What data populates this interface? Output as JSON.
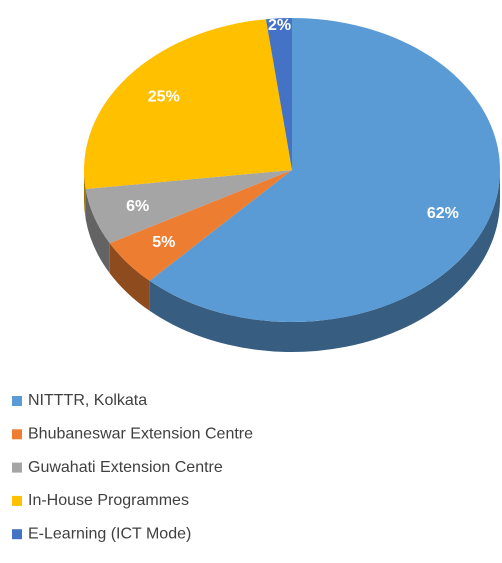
{
  "chart_data": {
    "type": "pie",
    "categories": [
      "NITTTR, Kolkata",
      "Bhubaneswar Extension Centre",
      "Guwahati Extension Centre",
      "In-House Programmes",
      "E-Learning (ICT Mode)"
    ],
    "values": [
      62,
      5,
      6,
      25,
      2
    ],
    "value_labels": [
      "62%",
      "5%",
      "6%",
      "25%",
      "2%"
    ],
    "colors": [
      "#5b9bd5",
      "#ed7d31",
      "#a5a5a5",
      "#ffc000",
      "#4472c4"
    ]
  }
}
